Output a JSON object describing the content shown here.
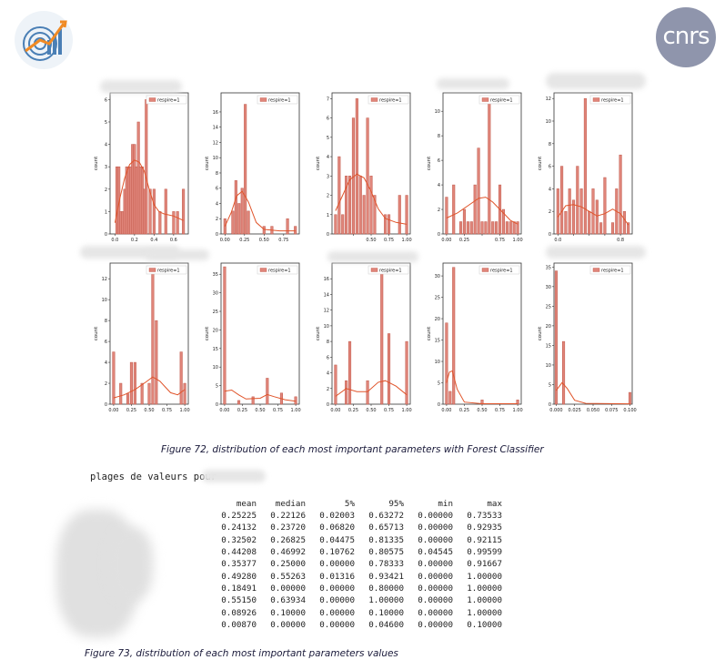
{
  "header": {
    "left_logo": "growth-chart-logo",
    "right_logo": "cnrs"
  },
  "figure72": {
    "caption": "Figure 72, distribution of each most important parameters with Forest Classifier",
    "legend_label": "respire=1",
    "y_axis_label": "count",
    "colors": {
      "bar": "#e0857a",
      "bar_edge": "#c0584a",
      "kde": "#e0542a"
    }
  },
  "chart_data": [
    {
      "type": "bar",
      "legend": "respire=1",
      "xlim": [
        -0.05,
        0.75
      ],
      "ylim": [
        0,
        6.3
      ],
      "yticks": [
        0,
        1,
        2,
        3,
        4,
        5,
        6
      ],
      "xticks": [
        0.0,
        0.2,
        0.4,
        0.6
      ],
      "xticklabels": [
        "0.0",
        "0.2",
        "0.4",
        "0.6"
      ],
      "x": [
        0.02,
        0.04,
        0.06,
        0.08,
        0.1,
        0.12,
        0.14,
        0.16,
        0.18,
        0.2,
        0.22,
        0.24,
        0.26,
        0.28,
        0.3,
        0.32,
        0.36,
        0.4,
        0.46,
        0.52,
        0.6,
        0.64,
        0.7
      ],
      "values": [
        3,
        3,
        1,
        1,
        2,
        3,
        3,
        3,
        4,
        4,
        3,
        5,
        3,
        3,
        2,
        6,
        2,
        2,
        1,
        2,
        1,
        1,
        2
      ],
      "kde": [
        [
          0.0,
          0.5
        ],
        [
          0.05,
          1.6
        ],
        [
          0.1,
          2.5
        ],
        [
          0.15,
          3.1
        ],
        [
          0.2,
          3.3
        ],
        [
          0.25,
          3.2
        ],
        [
          0.3,
          2.8
        ],
        [
          0.35,
          2.0
        ],
        [
          0.4,
          1.3
        ],
        [
          0.45,
          1.0
        ],
        [
          0.5,
          0.9
        ],
        [
          0.6,
          0.8
        ],
        [
          0.7,
          0.6
        ]
      ]
    },
    {
      "type": "bar",
      "legend": "respire=1",
      "xlim": [
        -0.05,
        0.95
      ],
      "ylim": [
        0,
        18.5
      ],
      "yticks": [
        0,
        2,
        4,
        6,
        8,
        10,
        12,
        14,
        16
      ],
      "xticks": [
        0.0,
        0.25,
        0.5,
        0.75
      ],
      "xticklabels": [
        "0.00",
        "0.25",
        "0.50",
        "0.75"
      ],
      "x": [
        0.0,
        0.1,
        0.14,
        0.18,
        0.22,
        0.26,
        0.3,
        0.5,
        0.6,
        0.8,
        0.9
      ],
      "values": [
        2,
        3,
        7,
        4,
        6,
        17,
        3,
        1,
        1,
        2,
        1
      ],
      "kde": [
        [
          0.0,
          1.0
        ],
        [
          0.08,
          2.8
        ],
        [
          0.15,
          5.0
        ],
        [
          0.22,
          5.6
        ],
        [
          0.3,
          4.2
        ],
        [
          0.4,
          1.5
        ],
        [
          0.5,
          0.6
        ],
        [
          0.7,
          0.4
        ],
        [
          0.9,
          0.4
        ]
      ]
    },
    {
      "type": "bar",
      "legend": "respire=1",
      "xlim": [
        -0.05,
        1.05
      ],
      "ylim": [
        0,
        7.3
      ],
      "yticks": [
        0,
        1,
        2,
        3,
        4,
        5,
        6,
        7
      ],
      "xticks": [
        0.25,
        0.5,
        0.75,
        1.0
      ],
      "xticklabels": [
        "",
        "0.50",
        "0.75",
        "1.00"
      ],
      "x": [
        0.0,
        0.05,
        0.1,
        0.15,
        0.2,
        0.25,
        0.3,
        0.35,
        0.4,
        0.45,
        0.5,
        0.55,
        0.7,
        0.75,
        0.9,
        1.0
      ],
      "values": [
        1,
        4,
        1,
        3,
        3,
        6,
        7,
        3,
        2,
        6,
        3,
        2,
        1,
        1,
        2,
        2
      ],
      "kde": [
        [
          0.0,
          1.2
        ],
        [
          0.1,
          2.0
        ],
        [
          0.2,
          2.8
        ],
        [
          0.3,
          3.1
        ],
        [
          0.4,
          2.9
        ],
        [
          0.5,
          2.2
        ],
        [
          0.6,
          1.3
        ],
        [
          0.7,
          0.8
        ],
        [
          0.85,
          0.6
        ],
        [
          1.0,
          0.5
        ]
      ]
    },
    {
      "type": "bar",
      "legend": "respire=1",
      "xlim": [
        -0.05,
        1.05
      ],
      "ylim": [
        0,
        11.5
      ],
      "yticks": [
        0,
        2,
        4,
        6,
        8,
        10
      ],
      "xticks": [
        0.0,
        0.25,
        0.5,
        0.75,
        1.0
      ],
      "xticklabels": [
        "0.00",
        "0.25",
        "",
        "0.75",
        "1.00"
      ],
      "x": [
        0.0,
        0.1,
        0.2,
        0.25,
        0.3,
        0.35,
        0.4,
        0.45,
        0.5,
        0.55,
        0.6,
        0.65,
        0.7,
        0.75,
        0.8,
        0.85,
        0.9,
        0.95,
        1.0
      ],
      "values": [
        3,
        4,
        1,
        2,
        1,
        1,
        4,
        7,
        1,
        1,
        11,
        1,
        1,
        4,
        2,
        1,
        1,
        1,
        1
      ],
      "kde": [
        [
          0.0,
          1.3
        ],
        [
          0.15,
          1.7
        ],
        [
          0.3,
          2.3
        ],
        [
          0.45,
          2.9
        ],
        [
          0.55,
          3.0
        ],
        [
          0.65,
          2.6
        ],
        [
          0.8,
          1.7
        ],
        [
          0.9,
          1.1
        ],
        [
          1.0,
          0.8
        ]
      ]
    },
    {
      "type": "bar",
      "legend": "respire=1",
      "xlim": [
        -0.05,
        0.95
      ],
      "ylim": [
        0,
        12.5
      ],
      "yticks": [
        0,
        2,
        4,
        6,
        8,
        10,
        12
      ],
      "xticks": [
        0.0,
        0.2,
        0.4,
        0.6,
        0.8
      ],
      "xticklabels": [
        "0.0",
        "",
        "",
        "",
        "0.8"
      ],
      "x": [
        0.0,
        0.05,
        0.1,
        0.15,
        0.2,
        0.25,
        0.3,
        0.35,
        0.4,
        0.45,
        0.5,
        0.55,
        0.6,
        0.7,
        0.75,
        0.8,
        0.85,
        0.9
      ],
      "values": [
        4,
        6,
        2,
        4,
        3,
        6,
        4,
        12,
        2,
        4,
        3,
        1,
        5,
        1,
        4,
        7,
        2,
        1
      ],
      "kde": [
        [
          0.0,
          1.5
        ],
        [
          0.1,
          2.5
        ],
        [
          0.2,
          2.6
        ],
        [
          0.3,
          2.4
        ],
        [
          0.4,
          2.0
        ],
        [
          0.5,
          1.6
        ],
        [
          0.6,
          1.8
        ],
        [
          0.7,
          2.2
        ],
        [
          0.8,
          1.8
        ],
        [
          0.9,
          0.8
        ]
      ]
    },
    {
      "type": "bar",
      "legend": "respire=1",
      "xlim": [
        -0.05,
        1.05
      ],
      "ylim": [
        0,
        13.5
      ],
      "yticks": [
        0,
        2,
        4,
        6,
        8,
        10,
        12
      ],
      "xticks": [
        0.0,
        0.25,
        0.5,
        0.75,
        1.0
      ],
      "xticklabels": [
        "0.00",
        "0.25",
        "0.50",
        "0.75",
        "1.00"
      ],
      "x": [
        0.0,
        0.1,
        0.2,
        0.25,
        0.3,
        0.4,
        0.5,
        0.55,
        0.6,
        0.95,
        1.0
      ],
      "values": [
        5,
        2,
        1,
        4,
        4,
        2,
        2,
        13,
        8,
        5,
        2
      ],
      "kde": [
        [
          0.0,
          0.6
        ],
        [
          0.15,
          0.9
        ],
        [
          0.3,
          1.4
        ],
        [
          0.45,
          2.1
        ],
        [
          0.55,
          2.6
        ],
        [
          0.65,
          2.2
        ],
        [
          0.8,
          1.1
        ],
        [
          0.9,
          0.9
        ],
        [
          1.0,
          1.4
        ]
      ]
    },
    {
      "type": "bar",
      "legend": "respire=1",
      "xlim": [
        -0.05,
        1.05
      ],
      "ylim": [
        0,
        38
      ],
      "yticks": [
        0,
        5,
        10,
        15,
        20,
        25,
        30,
        35
      ],
      "xticks": [
        0.0,
        0.25,
        0.5,
        0.75,
        1.0
      ],
      "xticklabels": [
        "0.00",
        "0.25",
        "0.50",
        "0.75",
        "1.00"
      ],
      "x": [
        0.0,
        0.2,
        0.4,
        0.6,
        0.8,
        1.0
      ],
      "values": [
        37,
        1,
        2,
        7,
        3,
        2
      ],
      "kde": [
        [
          0.0,
          3.5
        ],
        [
          0.1,
          3.8
        ],
        [
          0.2,
          2.5
        ],
        [
          0.3,
          1.4
        ],
        [
          0.5,
          1.6
        ],
        [
          0.6,
          2.6
        ],
        [
          0.7,
          2.0
        ],
        [
          0.85,
          1.2
        ],
        [
          1.0,
          0.8
        ]
      ]
    },
    {
      "type": "bar",
      "legend": "respire=1",
      "xlim": [
        -0.05,
        1.05
      ],
      "ylim": [
        0,
        18
      ],
      "yticks": [
        0,
        2,
        4,
        6,
        8,
        10,
        12,
        14,
        16
      ],
      "xticks": [
        0.0,
        0.25,
        0.5,
        0.75,
        1.0
      ],
      "xticklabels": [
        "0.00",
        "0.25",
        "0.50",
        "0.75",
        "1.00"
      ],
      "x": [
        0.0,
        0.15,
        0.2,
        0.45,
        0.65,
        0.75,
        1.0
      ],
      "values": [
        5,
        3,
        8,
        3,
        17,
        9,
        8
      ],
      "kde": [
        [
          0.0,
          1.0
        ],
        [
          0.15,
          2.0
        ],
        [
          0.3,
          1.6
        ],
        [
          0.45,
          1.6
        ],
        [
          0.6,
          2.8
        ],
        [
          0.7,
          3.0
        ],
        [
          0.85,
          2.3
        ],
        [
          1.0,
          1.2
        ]
      ]
    },
    {
      "type": "bar",
      "legend": "respire=1",
      "xlim": [
        -0.05,
        1.05
      ],
      "ylim": [
        0,
        33
      ],
      "yticks": [
        0,
        5,
        10,
        15,
        20,
        25,
        30
      ],
      "xticks": [
        0.0,
        0.25,
        0.5,
        0.75,
        1.0
      ],
      "xticklabels": [
        "0.00",
        "0.25",
        "0.50",
        "0.75",
        "1.00"
      ],
      "x": [
        0.0,
        0.05,
        0.1,
        0.5,
        1.0
      ],
      "values": [
        19,
        3,
        32,
        1,
        1
      ],
      "kde": [
        [
          0.0,
          5.0
        ],
        [
          0.04,
          7.5
        ],
        [
          0.08,
          7.8
        ],
        [
          0.15,
          3.5
        ],
        [
          0.25,
          0.5
        ],
        [
          0.5,
          0.1
        ],
        [
          1.0,
          0.1
        ]
      ]
    },
    {
      "type": "bar",
      "legend": "respire=1",
      "xlim": [
        -0.003,
        0.103
      ],
      "ylim": [
        0,
        36
      ],
      "yticks": [
        0,
        5,
        10,
        15,
        20,
        25,
        30,
        35
      ],
      "xticks": [
        0.0,
        0.025,
        0.05,
        0.075,
        0.1
      ],
      "xticklabels": [
        "0.000",
        "0.025",
        "0.050",
        "0.075",
        "0.100"
      ],
      "x": [
        0.0,
        0.01,
        0.1
      ],
      "values": [
        34,
        16,
        3
      ],
      "kde": [
        [
          0.0,
          3.5
        ],
        [
          0.008,
          5.5
        ],
        [
          0.015,
          4.0
        ],
        [
          0.025,
          1.0
        ],
        [
          0.04,
          0.2
        ],
        [
          0.1,
          0.1
        ]
      ]
    }
  ],
  "figure73": {
    "title": "plages de valeurs pour",
    "columns": [
      "mean",
      "median",
      "5%",
      "95%",
      "min",
      "max"
    ],
    "rows": [
      [
        "0.25225",
        "0.22126",
        "0.02003",
        "0.63272",
        "0.00000",
        "0.73533"
      ],
      [
        "0.24132",
        "0.23720",
        "0.06820",
        "0.65713",
        "0.00000",
        "0.92935"
      ],
      [
        "0.32502",
        "0.26825",
        "0.04475",
        "0.81335",
        "0.00000",
        "0.92115"
      ],
      [
        "0.44208",
        "0.46992",
        "0.10762",
        "0.80575",
        "0.04545",
        "0.99599"
      ],
      [
        "0.35377",
        "0.25000",
        "0.00000",
        "0.78333",
        "0.00000",
        "0.91667"
      ],
      [
        "0.49280",
        "0.55263",
        "0.01316",
        "0.93421",
        "0.00000",
        "1.00000"
      ],
      [
        "0.18491",
        "0.00000",
        "0.00000",
        "0.80000",
        "0.00000",
        "1.00000"
      ],
      [
        "0.55150",
        "0.63934",
        "0.00000",
        "1.00000",
        "0.00000",
        "1.00000"
      ],
      [
        "0.08926",
        "0.10000",
        "0.00000",
        "0.10000",
        "0.00000",
        "1.00000"
      ],
      [
        "0.00870",
        "0.00000",
        "0.00000",
        "0.04600",
        "0.00000",
        "0.10000"
      ]
    ],
    "caption": "Figure 73, distribution of each most important parameters values"
  }
}
